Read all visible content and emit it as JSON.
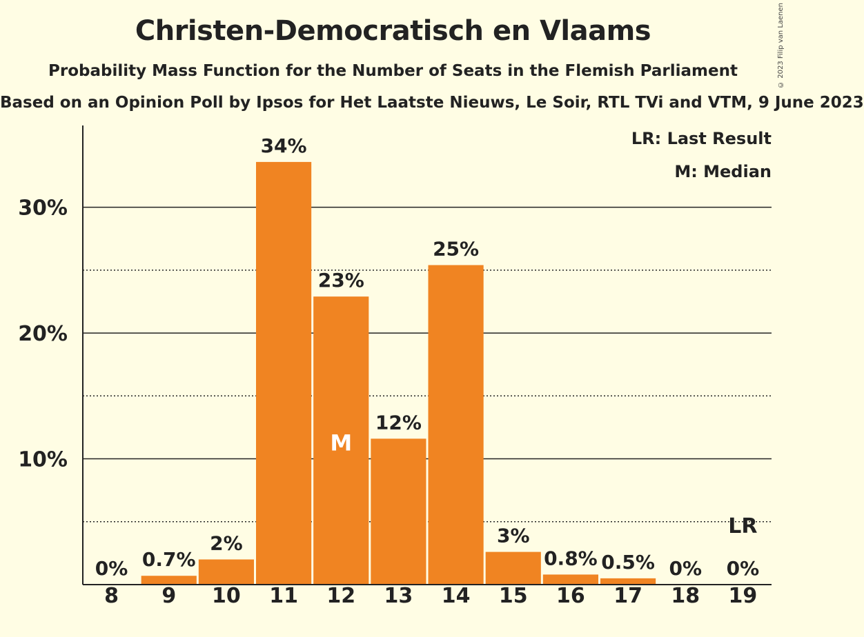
{
  "title": "Christen-Democratisch en Vlaams",
  "subtitle": "Probability Mass Function for the Number of Seats in the Flemish Parliament",
  "source": "Based on an Opinion Poll by Ipsos for Het Laatste Nieuws, Le Soir, RTL TVi and VTM, 9 June 2023",
  "copyright": "© 2023 Filip van Laenen",
  "colors": {
    "bar": "#f08422",
    "background": "#fffde4",
    "text": "#222222"
  },
  "legend": {
    "last_result": "LR: Last Result",
    "median": "M: Median"
  },
  "chart_data": {
    "type": "bar",
    "categories": [
      "8",
      "9",
      "10",
      "11",
      "12",
      "13",
      "14",
      "15",
      "16",
      "17",
      "18",
      "19"
    ],
    "values": [
      0,
      0.7,
      2.0,
      33.6,
      22.9,
      11.6,
      25.4,
      2.6,
      0.8,
      0.5,
      0,
      0
    ],
    "value_labels": [
      "0%",
      "0.7%",
      "2%",
      "34%",
      "23%",
      "12%",
      "25%",
      "3%",
      "0.8%",
      "0.5%",
      "0%",
      "0%"
    ],
    "y_ticks": [
      {
        "value": 10,
        "label": "10%"
      },
      {
        "value": 20,
        "label": "20%"
      },
      {
        "value": 30,
        "label": "30%"
      }
    ],
    "y_minor_gridlines": [
      5,
      15,
      25
    ],
    "ylim": [
      0,
      36.5
    ],
    "median": {
      "category": "12",
      "marker": "M"
    },
    "last_result": {
      "category": "19",
      "marker": "LR"
    },
    "legend_position": "top-right"
  }
}
